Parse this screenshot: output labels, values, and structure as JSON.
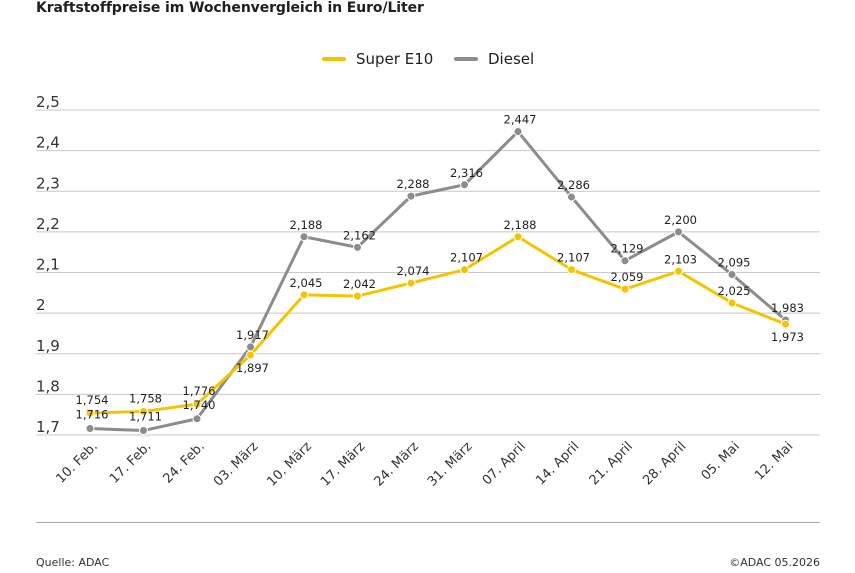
{
  "header": {
    "title": "Kraftstoffpreise im Wochenvergleich in Euro/Liter"
  },
  "legend": [
    {
      "label": "Super E10",
      "color": "#f2c500"
    },
    {
      "label": "Diesel",
      "color": "#8c8c8c"
    }
  ],
  "footer": {
    "source": "Quelle: ADAC",
    "copyright": "©ADAC 05.2026"
  },
  "chart_data": {
    "type": "line",
    "title": "Kraftstoffpreise im Wochenvergleich in Euro/Liter",
    "categories": [
      "10. Feb.",
      "17. Feb.",
      "24. Feb.",
      "03. März",
      "10. März",
      "17. März",
      "24. März",
      "31. März",
      "07. April",
      "14. April",
      "21. April",
      "28. April",
      "05. Mai",
      "12. Mai"
    ],
    "series": [
      {
        "name": "Super E10",
        "color": "#f2c500",
        "values": [
          1.754,
          1.758,
          1.776,
          1.897,
          2.045,
          2.042,
          2.074,
          2.107,
          2.188,
          2.107,
          2.059,
          2.103,
          2.025,
          1.973
        ],
        "labels": [
          "1,754",
          "1,758",
          "1,776",
          "1,897",
          "2,045",
          "2,042",
          "2,074",
          "2,107",
          "2,188",
          "2,107",
          "2,059",
          "2,103",
          "2,025",
          "1,973"
        ]
      },
      {
        "name": "Diesel",
        "color": "#8c8c8c",
        "values": [
          1.716,
          1.711,
          1.74,
          1.917,
          2.188,
          2.162,
          2.288,
          2.316,
          2.447,
          2.286,
          2.129,
          2.2,
          2.095,
          1.983
        ],
        "labels": [
          "1,716",
          "1,711",
          "1,740",
          "1,917",
          "2,188",
          "2,162",
          "2,288",
          "2,316",
          "2,447",
          "2,286",
          "2,129",
          "2,200",
          "2,095",
          "1,983"
        ]
      }
    ],
    "y_ticks": [
      "1,7",
      "1,8",
      "1,9",
      "2",
      "2,1",
      "2,2",
      "2,3",
      "2,4",
      "2,5"
    ],
    "ylim": [
      1.7,
      2.5
    ],
    "xlabel": "",
    "ylabel": "",
    "grid": true,
    "legend_position": "top-center"
  }
}
